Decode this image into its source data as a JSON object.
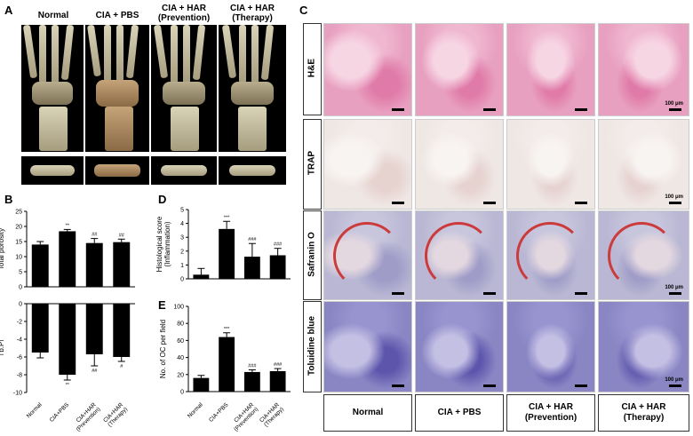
{
  "panels": {
    "A": "A",
    "B": "B",
    "C": "C",
    "D": "D",
    "E": "E"
  },
  "panel_a": {
    "columns": [
      {
        "line1": "Normal",
        "line2": ""
      },
      {
        "line1": "CIA + PBS",
        "line2": ""
      },
      {
        "line1": "CIA + HAR",
        "line2": "(Prevention)"
      },
      {
        "line1": "CIA + HAR",
        "line2": "(Therapy)"
      }
    ]
  },
  "chart_data": [
    {
      "id": "B-top",
      "type": "bar",
      "ylabel": "Total porosity",
      "categories": [
        "Normal",
        "CIA+PBS",
        "CIA+HAR (Prevention)",
        "CIA+HAR (Therapy)"
      ],
      "values": [
        14.0,
        18.4,
        14.5,
        14.8
      ],
      "errors": [
        1.0,
        0.6,
        1.5,
        1.0
      ],
      "annotations": [
        "",
        "**",
        "##",
        "##"
      ],
      "ylim": [
        0,
        25
      ],
      "yticks": [
        0,
        5,
        10,
        15,
        20,
        25
      ]
    },
    {
      "id": "B-bottom",
      "type": "bar",
      "ylabel": "Tb.Pf",
      "categories": [
        "Normal",
        "CIA+PBS",
        "CIA+HAR (Prevention)",
        "CIA+HAR (Therapy)"
      ],
      "tick_labels": [
        "Normal",
        "CIA+PBS",
        "CIA+HAR\n(Prevention)",
        "CIA+HAR\n(Therapy)"
      ],
      "values": [
        -5.5,
        -8.0,
        -5.7,
        -6.0
      ],
      "errors": [
        0.6,
        0.6,
        1.3,
        0.5
      ],
      "annotations": [
        "",
        "**",
        "##",
        "#"
      ],
      "ylim": [
        -10,
        0
      ],
      "yticks": [
        -10,
        -8,
        -6,
        -4,
        -2,
        0
      ]
    },
    {
      "id": "D",
      "type": "bar",
      "ylabel": "Histological score\n(Inflammation)",
      "categories": [
        "Normal",
        "CIA+PBS",
        "CIA+HAR (Prevention)",
        "CIA+HAR (Therapy)"
      ],
      "values": [
        0.3,
        3.6,
        1.6,
        1.7
      ],
      "errors": [
        0.45,
        0.55,
        0.95,
        0.5
      ],
      "annotations": [
        "",
        "***",
        "###",
        "###"
      ],
      "ylim": [
        0,
        5
      ],
      "yticks": [
        0,
        1,
        2,
        3,
        4,
        5
      ]
    },
    {
      "id": "E",
      "type": "bar",
      "ylabel": "No. of OC per field",
      "categories": [
        "Normal",
        "CIA+PBS",
        "CIA+HAR (Prevention)",
        "CIA+HAR (Therapy)"
      ],
      "tick_labels": [
        "Normal",
        "CIA+PBS",
        "CIA+HAR\n(Prevention)",
        "CIA+HAR\n(Therapy)"
      ],
      "values": [
        16,
        64,
        23,
        24
      ],
      "errors": [
        3,
        5,
        2.5,
        3
      ],
      "annotations": [
        "",
        "***",
        "###",
        "###"
      ],
      "ylim": [
        0,
        100
      ],
      "yticks": [
        0,
        20,
        40,
        60,
        80,
        100
      ]
    }
  ],
  "panel_c": {
    "rows": [
      "H&E",
      "TRAP",
      "Safranin O",
      "Toluidine blue"
    ],
    "scalebar_label": "100 μm",
    "columns": [
      {
        "line1": "Normal",
        "line2": ""
      },
      {
        "line1": "CIA + PBS",
        "line2": ""
      },
      {
        "line1": "CIA + HAR",
        "line2": "(Prevention)"
      },
      {
        "line1": "CIA + HAR",
        "line2": "(Therapy)"
      }
    ],
    "stain_colors": {
      "H&E": "#e8a0c0",
      "TRAP": "#efe7e4",
      "Safranin O": "#b9b7d3",
      "Toluidine blue": "#8a86c4"
    }
  }
}
